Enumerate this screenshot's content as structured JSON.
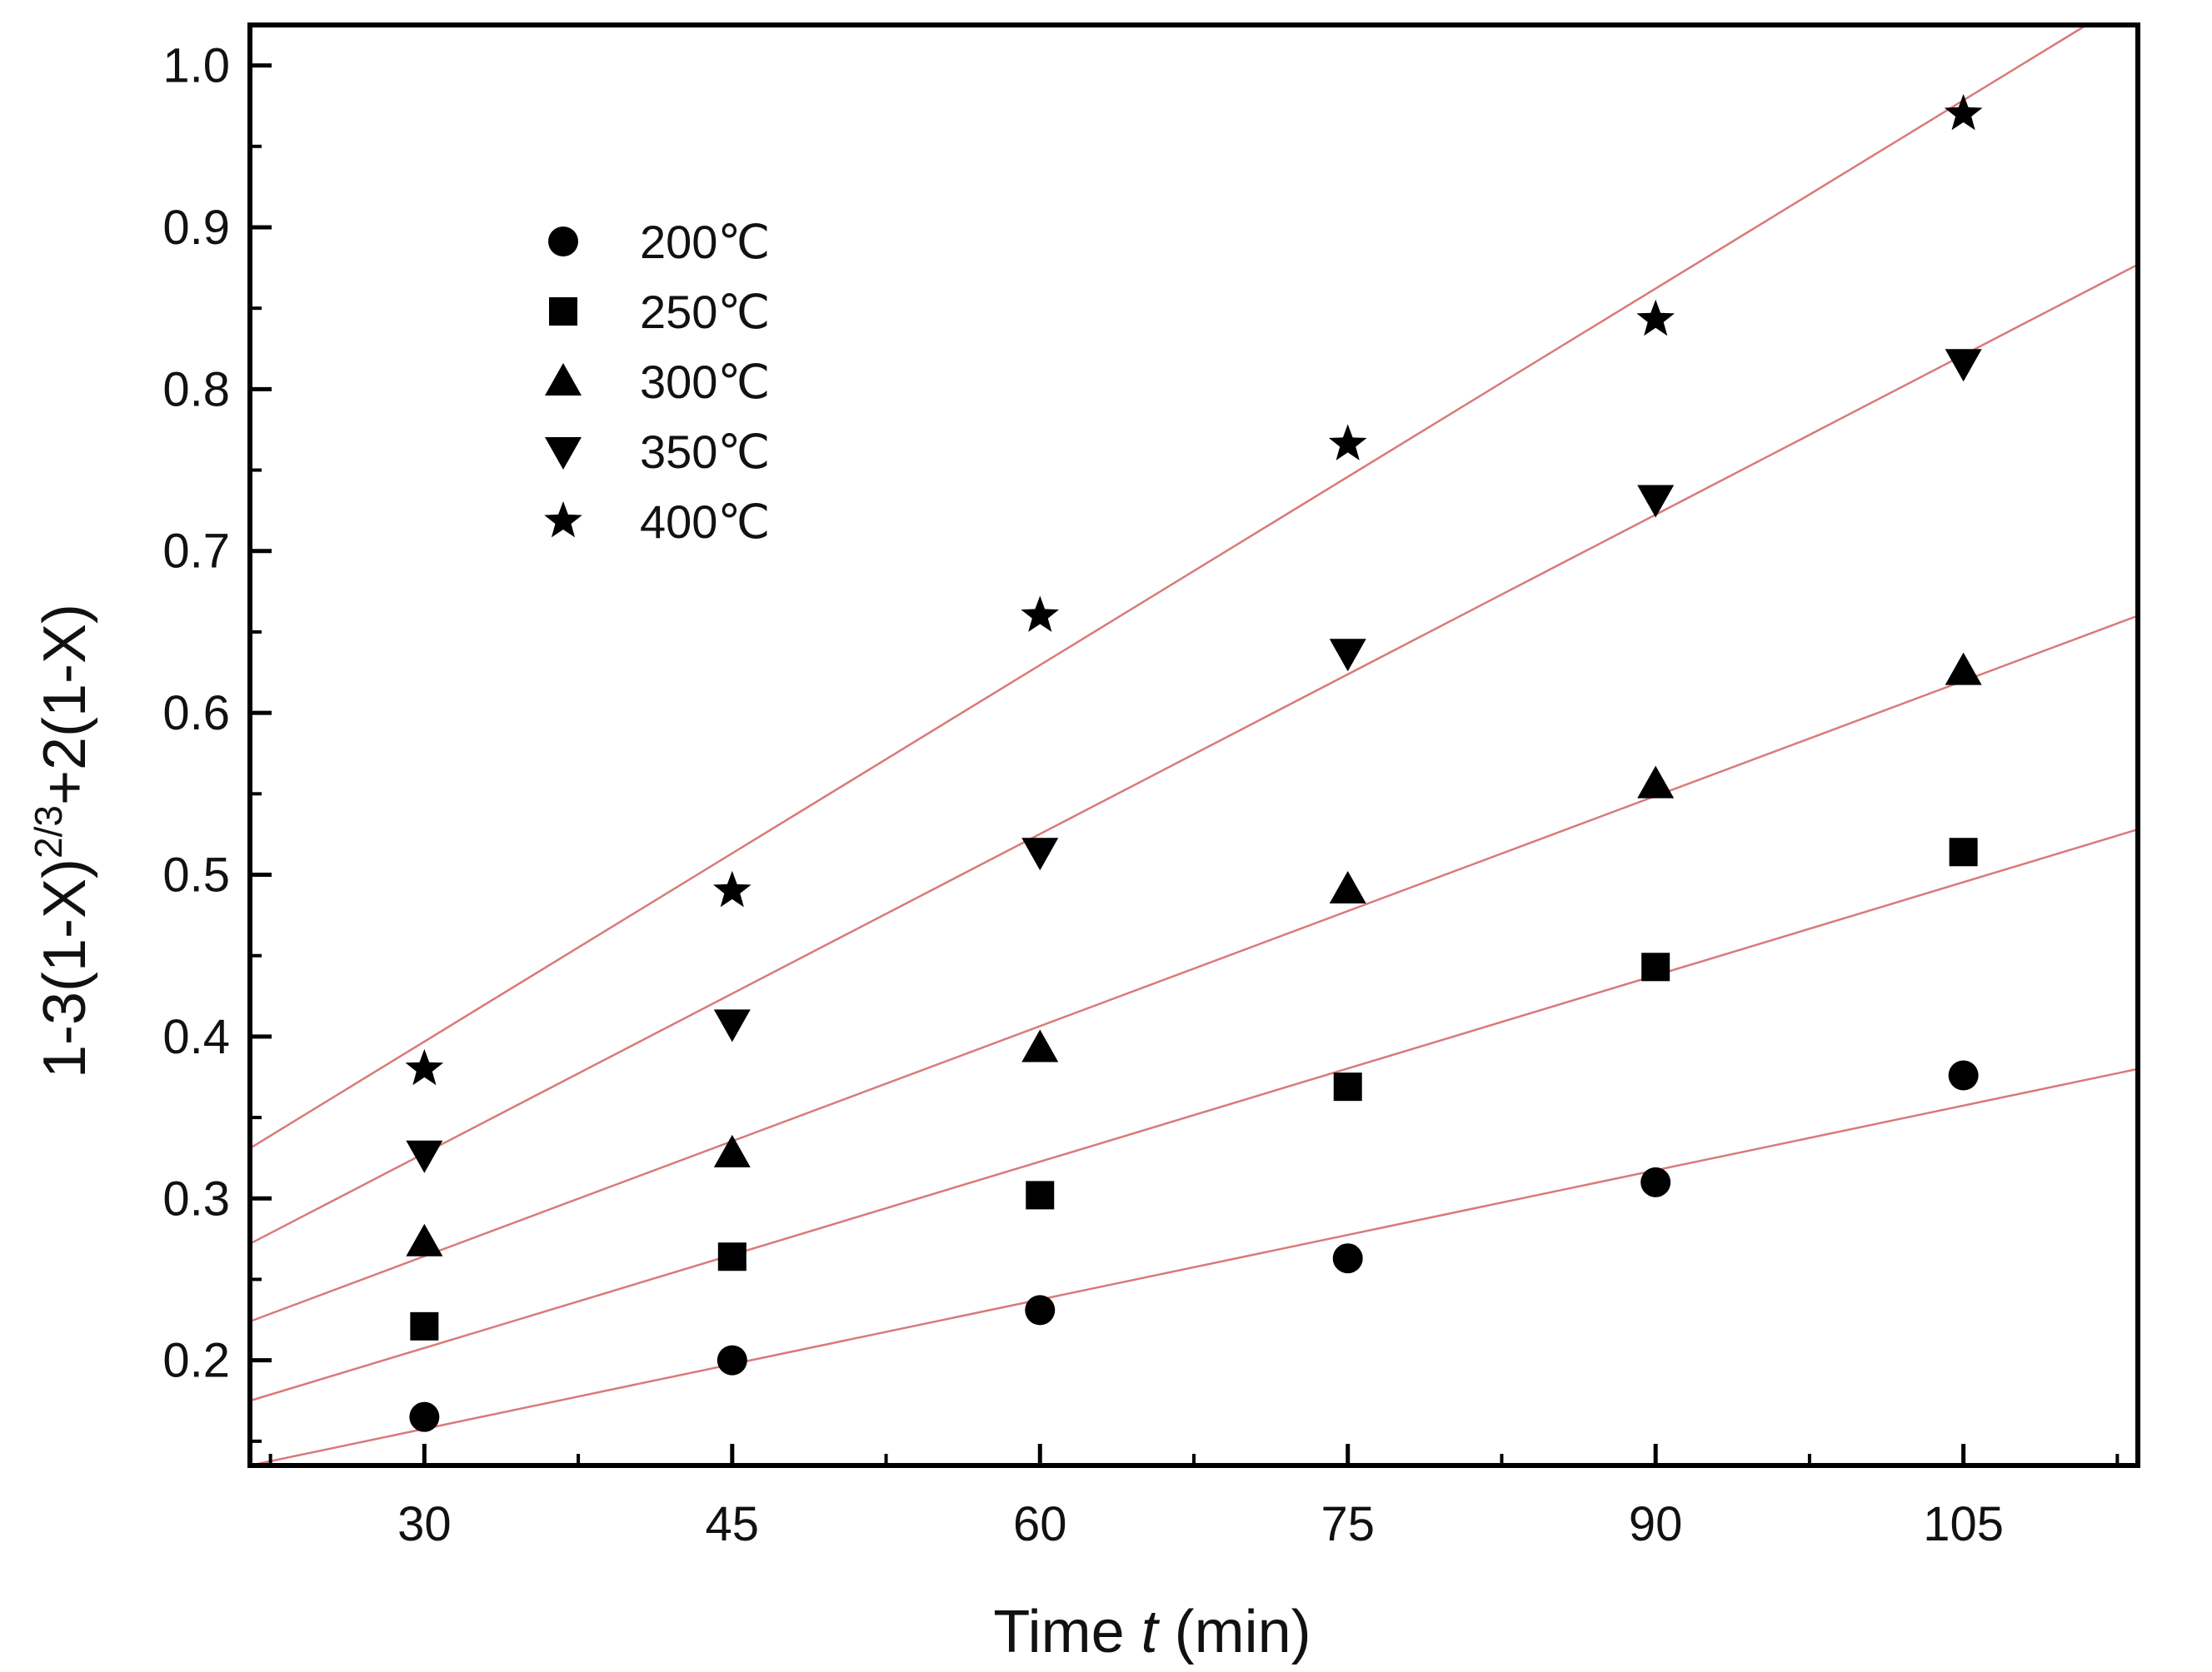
{
  "chart_data": {
    "type": "scatter",
    "title": "",
    "xlabel": {
      "prefix": "Time ",
      "var": "t",
      "suffix": " (min)"
    },
    "ylabel": {
      "base": "1-3(1-X)",
      "exponent": "2/3",
      "tail": "+2(1-X)"
    },
    "xlim": [
      21.5,
      113.5
    ],
    "ylim": [
      0.135,
      1.025
    ],
    "xticks": [
      "30",
      "45",
      "60",
      "75",
      "90",
      "105"
    ],
    "yticks": [
      "0.2",
      "0.3",
      "0.4",
      "0.5",
      "0.6",
      "0.7",
      "0.8",
      "0.9",
      "1.0"
    ],
    "grid": false,
    "legend_position": "top-left",
    "x": [
      30,
      45,
      60,
      75,
      90,
      105
    ],
    "fit_line_color": "#d97a7a",
    "marker_color": "#000000",
    "series": [
      {
        "name": "200℃",
        "marker": "circle",
        "values": [
          0.165,
          0.2,
          0.231,
          0.263,
          0.31,
          0.376
        ],
        "fit": {
          "x0": 21.5,
          "y0": 0.135,
          "x1": 113.5,
          "y1": 0.38
        }
      },
      {
        "name": "250℃",
        "marker": "square",
        "values": [
          0.221,
          0.264,
          0.302,
          0.369,
          0.443,
          0.514
        ],
        "fit": {
          "x0": 21.5,
          "y0": 0.175,
          "x1": 113.5,
          "y1": 0.528
        }
      },
      {
        "name": "300℃",
        "marker": "triangle-up",
        "values": [
          0.273,
          0.328,
          0.393,
          0.491,
          0.556,
          0.626
        ],
        "fit": {
          "x0": 21.5,
          "y0": 0.224,
          "x1": 113.5,
          "y1": 0.66
        }
      },
      {
        "name": "350℃",
        "marker": "triangle-down",
        "values": [
          0.327,
          0.408,
          0.514,
          0.637,
          0.732,
          0.816
        ],
        "fit": {
          "x0": 21.5,
          "y0": 0.272,
          "x1": 113.5,
          "y1": 0.877
        }
      },
      {
        "name": "400℃",
        "marker": "star",
        "values": [
          0.38,
          0.49,
          0.66,
          0.766,
          0.843,
          0.97
        ],
        "fit": {
          "x0": 21.5,
          "y0": 0.331,
          "x1": 111.0,
          "y1": 1.025
        }
      }
    ]
  }
}
